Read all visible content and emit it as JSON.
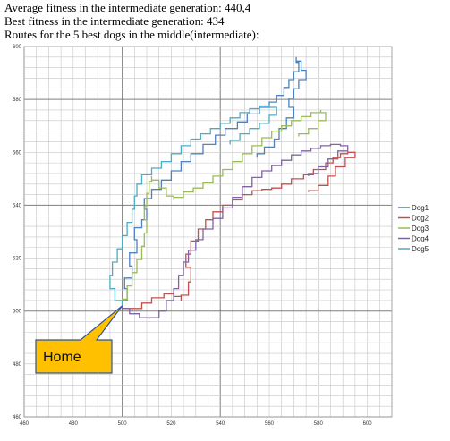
{
  "header": {
    "line1": "Average fitness in the intermediate generation: 440,4",
    "line2": "Best fitness in the intermediate generation: 434",
    "line3": "Routes for the 5 best dogs in the middle(intermediate):"
  },
  "callout": {
    "label": "Home",
    "fill": "#FFC000",
    "border": "#2F5597"
  },
  "chart_data": {
    "type": "line",
    "title": "",
    "xlabel": "",
    "ylabel": "",
    "xlim": [
      460,
      610
    ],
    "ylim": [
      460,
      600
    ],
    "x_ticks": [
      "460",
      "480",
      "500",
      "520",
      "540",
      "560",
      "580",
      "600"
    ],
    "y_ticks": [
      "460",
      "480",
      "500",
      "520",
      "540",
      "560",
      "580",
      "600"
    ],
    "grid": true,
    "legend_position": "right",
    "series": [
      {
        "name": "Dog1",
        "color": "#4F81BD",
        "points": [
          [
            500,
            502
          ],
          [
            502,
            506
          ],
          [
            501,
            511
          ],
          [
            504,
            514
          ],
          [
            503,
            520
          ],
          [
            506,
            524
          ],
          [
            505,
            530
          ],
          [
            508,
            533
          ],
          [
            510,
            536
          ],
          [
            509,
            541
          ],
          [
            512,
            544
          ],
          [
            516,
            548
          ],
          [
            520,
            551
          ],
          [
            524,
            555
          ],
          [
            528,
            558
          ],
          [
            533,
            561
          ],
          [
            538,
            565
          ],
          [
            542,
            568
          ],
          [
            547,
            570
          ],
          [
            551,
            573
          ],
          [
            556,
            576
          ],
          [
            560,
            578
          ],
          [
            563,
            580
          ],
          [
            566,
            583
          ],
          [
            568,
            586
          ],
          [
            570,
            589
          ],
          [
            572,
            592
          ],
          [
            571,
            596
          ],
          [
            573,
            593
          ],
          [
            575,
            589
          ],
          [
            572,
            586
          ],
          [
            570,
            582
          ],
          [
            568,
            579
          ],
          [
            570,
            575
          ],
          [
            567,
            571
          ],
          [
            564,
            567
          ],
          [
            562,
            563
          ],
          [
            558,
            561
          ],
          [
            555,
            558
          ]
        ]
      },
      {
        "name": "Dog2",
        "color": "#C0504D",
        "points": [
          [
            500,
            502
          ],
          [
            504,
            500
          ],
          [
            508,
            502
          ],
          [
            512,
            504
          ],
          [
            517,
            506
          ],
          [
            521,
            507
          ],
          [
            524,
            504
          ],
          [
            527,
            508
          ],
          [
            528,
            514
          ],
          [
            526,
            519
          ],
          [
            528,
            524
          ],
          [
            531,
            529
          ],
          [
            534,
            533
          ],
          [
            537,
            536
          ],
          [
            541,
            539
          ],
          [
            545,
            541
          ],
          [
            549,
            543
          ],
          [
            553,
            545
          ],
          [
            557,
            546
          ],
          [
            561,
            546
          ],
          [
            565,
            547
          ],
          [
            569,
            549
          ],
          [
            574,
            551
          ],
          [
            578,
            552
          ],
          [
            583,
            555
          ],
          [
            586,
            557
          ],
          [
            589,
            559
          ],
          [
            592,
            560
          ],
          [
            595,
            560
          ],
          [
            591,
            556
          ],
          [
            587,
            553
          ],
          [
            584,
            549
          ],
          [
            580,
            546
          ],
          [
            576,
            545
          ]
        ]
      },
      {
        "name": "Dog3",
        "color": "#9BBB59",
        "points": [
          [
            500,
            502
          ],
          [
            502,
            507
          ],
          [
            504,
            512
          ],
          [
            506,
            517
          ],
          [
            508,
            522
          ],
          [
            509,
            527
          ],
          [
            510,
            532
          ],
          [
            509,
            537
          ],
          [
            510,
            542
          ],
          [
            511,
            547
          ],
          [
            512,
            551
          ],
          [
            515,
            548
          ],
          [
            518,
            545
          ],
          [
            521,
            542
          ],
          [
            525,
            544
          ],
          [
            529,
            546
          ],
          [
            533,
            547
          ],
          [
            537,
            550
          ],
          [
            541,
            552
          ],
          [
            545,
            555
          ],
          [
            549,
            558
          ],
          [
            553,
            561
          ],
          [
            557,
            564
          ],
          [
            561,
            567
          ],
          [
            565,
            569
          ],
          [
            569,
            571
          ],
          [
            573,
            573
          ],
          [
            577,
            574
          ],
          [
            581,
            576
          ],
          [
            583,
            574
          ],
          [
            580,
            570
          ],
          [
            576,
            568
          ],
          [
            572,
            566
          ]
        ]
      },
      {
        "name": "Dog4",
        "color": "#8064A2",
        "points": [
          [
            500,
            502
          ],
          [
            503,
            500
          ],
          [
            507,
            498
          ],
          [
            511,
            497
          ],
          [
            515,
            498
          ],
          [
            518,
            502
          ],
          [
            521,
            506
          ],
          [
            523,
            511
          ],
          [
            525,
            516
          ],
          [
            527,
            521
          ],
          [
            530,
            525
          ],
          [
            533,
            529
          ],
          [
            537,
            533
          ],
          [
            541,
            537
          ],
          [
            545,
            541
          ],
          [
            549,
            545
          ],
          [
            553,
            549
          ],
          [
            557,
            552
          ],
          [
            561,
            554
          ],
          [
            565,
            556
          ],
          [
            569,
            558
          ],
          [
            573,
            560
          ],
          [
            577,
            561
          ],
          [
            581,
            562
          ],
          [
            585,
            563
          ],
          [
            589,
            563
          ],
          [
            592,
            562
          ],
          [
            588,
            559
          ],
          [
            584,
            556
          ],
          [
            580,
            553
          ],
          [
            576,
            551
          ]
        ]
      },
      {
        "name": "Dog5",
        "color": "#4BACC6",
        "points": [
          [
            500,
            502
          ],
          [
            497,
            506
          ],
          [
            495,
            511
          ],
          [
            496,
            516
          ],
          [
            498,
            521
          ],
          [
            500,
            526
          ],
          [
            502,
            531
          ],
          [
            504,
            536
          ],
          [
            505,
            541
          ],
          [
            506,
            546
          ],
          [
            508,
            550
          ],
          [
            512,
            553
          ],
          [
            516,
            555
          ],
          [
            520,
            558
          ],
          [
            524,
            561
          ],
          [
            528,
            564
          ],
          [
            532,
            566
          ],
          [
            536,
            568
          ],
          [
            540,
            570
          ],
          [
            544,
            572
          ],
          [
            548,
            574
          ],
          [
            552,
            576
          ],
          [
            556,
            577
          ],
          [
            560,
            578
          ],
          [
            563,
            576
          ],
          [
            560,
            572
          ],
          [
            556,
            570
          ],
          [
            552,
            568
          ],
          [
            548,
            566
          ],
          [
            544,
            563
          ]
        ]
      }
    ]
  }
}
